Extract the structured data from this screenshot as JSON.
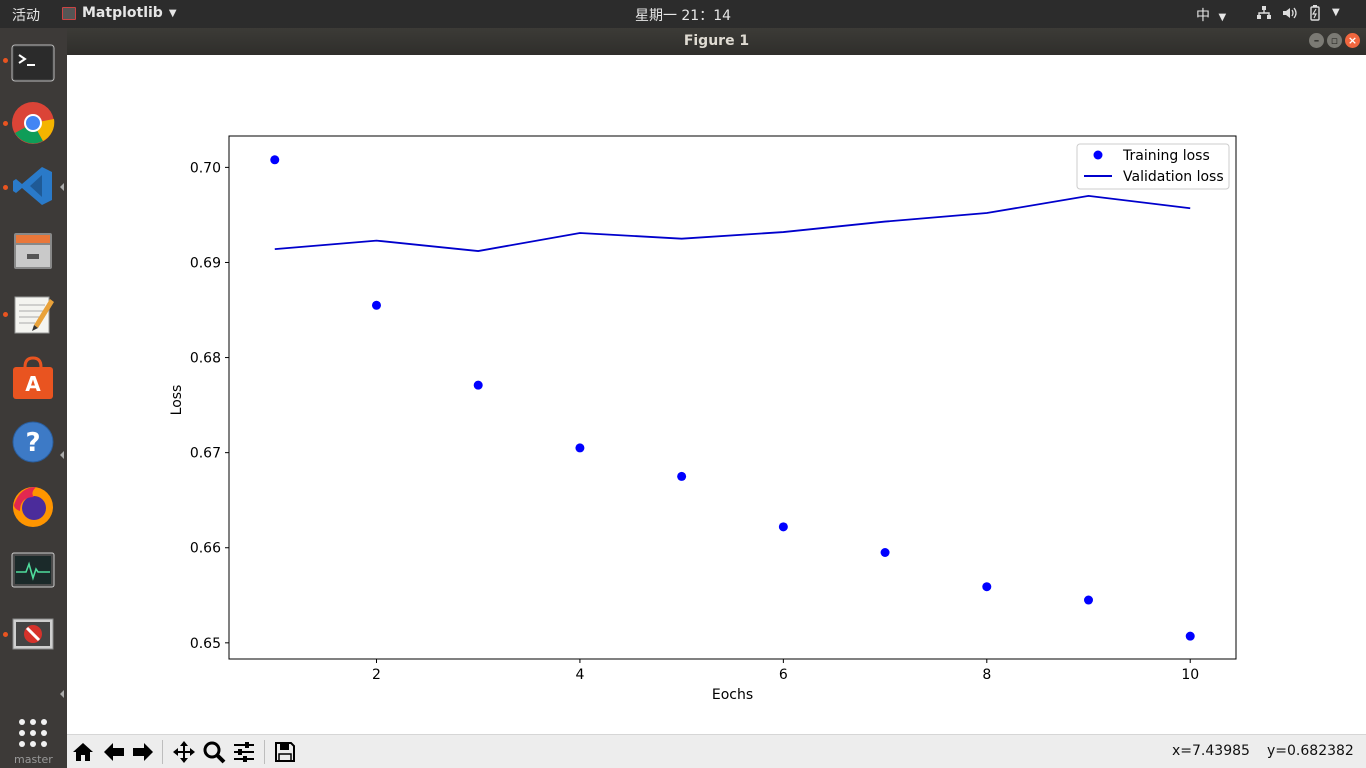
{
  "topbar": {
    "activities": "活动",
    "app_menu": "Matplotlib",
    "clock": "星期一 21：14",
    "input_method": "中"
  },
  "window": {
    "title": "Figure 1"
  },
  "dock": {
    "items": [
      {
        "name": "terminal-icon",
        "running": true
      },
      {
        "name": "chrome-icon",
        "running": true
      },
      {
        "name": "vscode-icon",
        "running": true
      },
      {
        "name": "file-cabinet-icon",
        "running": false
      },
      {
        "name": "text-editor-icon",
        "running": true
      },
      {
        "name": "software-center-icon",
        "running": false
      },
      {
        "name": "help-icon",
        "running": false
      },
      {
        "name": "firefox-icon",
        "running": false
      },
      {
        "name": "system-monitor-icon",
        "running": false
      },
      {
        "name": "blocked-app-icon",
        "running": true
      }
    ],
    "show_apps": "show-applications-icon",
    "branch_label": "master"
  },
  "toolbar": {
    "buttons": [
      "home-icon",
      "back-icon",
      "forward-icon",
      "pan-icon",
      "zoom-icon",
      "configure-subplots-icon",
      "save-icon"
    ],
    "coord_x": "x=7.43985",
    "coord_y": "y=0.682382"
  },
  "chart_data": {
    "type": "line",
    "title": "",
    "xlabel": "Eochs",
    "ylabel": "Loss",
    "xlim": [
      0.55,
      10.45
    ],
    "ylim": [
      0.6483,
      0.7033
    ],
    "xticks": [
      2,
      4,
      6,
      8,
      10
    ],
    "xtick_labels": [
      "2",
      "4",
      "6",
      "8",
      "10"
    ],
    "yticks": [
      0.65,
      0.66,
      0.67,
      0.68,
      0.69,
      0.7
    ],
    "ytick_labels": [
      "0.65",
      "0.66",
      "0.67",
      "0.68",
      "0.69",
      "0.70"
    ],
    "grid": false,
    "legend_position": "upper right",
    "series": [
      {
        "name": "Training loss",
        "style": "markers",
        "color": "#0000ff",
        "x": [
          1,
          2,
          3,
          4,
          5,
          6,
          7,
          8,
          9,
          10
        ],
        "y": [
          0.7008,
          0.6855,
          0.6771,
          0.6705,
          0.6675,
          0.6622,
          0.6595,
          0.6559,
          0.6545,
          0.6507
        ]
      },
      {
        "name": "Validation loss",
        "style": "line",
        "color": "#0000cc",
        "x": [
          1,
          2,
          3,
          4,
          5,
          6,
          7,
          8,
          9,
          10
        ],
        "y": [
          0.6914,
          0.6923,
          0.6912,
          0.6931,
          0.6925,
          0.6932,
          0.6943,
          0.6952,
          0.697,
          0.6957
        ]
      }
    ]
  }
}
